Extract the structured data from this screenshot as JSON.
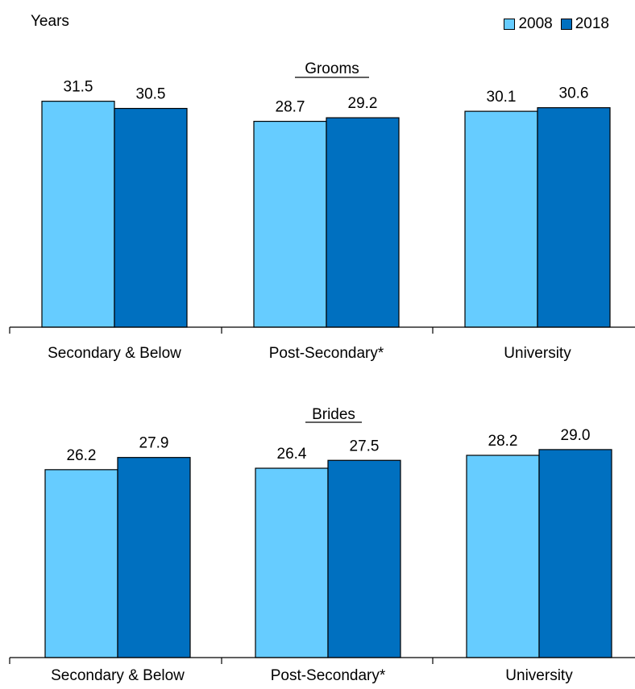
{
  "chart_data": [
    {
      "type": "bar",
      "title": "Grooms",
      "ylabel": "Years",
      "categories": [
        "Secondary & Below",
        "Post-Secondary*",
        "University"
      ],
      "series": [
        {
          "name": "2008",
          "values": [
            31.5,
            28.7,
            30.1
          ],
          "color": "#66CCFF"
        },
        {
          "name": "2018",
          "values": [
            30.5,
            29.2,
            30.6
          ],
          "color": "#0070C0"
        }
      ],
      "ylim": [
        0,
        33.5
      ],
      "grid": false,
      "legend": "top-right"
    },
    {
      "type": "bar",
      "title": "Brides",
      "ylabel": "Years",
      "categories": [
        "Secondary & Below",
        "Post-Secondary*",
        "University"
      ],
      "series": [
        {
          "name": "2008",
          "values": [
            26.2,
            26.4,
            28.2
          ],
          "color": "#66CCFF"
        },
        {
          "name": "2018",
          "values": [
            27.9,
            27.5,
            29.0
          ],
          "color": "#0070C0"
        }
      ],
      "ylim": [
        0,
        33.5
      ],
      "grid": false,
      "legend": "top-right"
    }
  ],
  "header": {
    "ylabel": "Years",
    "legend": [
      {
        "name": "2008",
        "color": "#66CCFF"
      },
      {
        "name": "2018",
        "color": "#0070C0"
      }
    ]
  }
}
